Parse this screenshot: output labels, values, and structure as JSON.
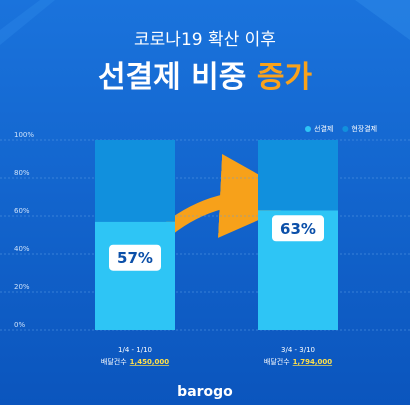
{
  "chart_data": {
    "type": "stacked_bar",
    "subtitle": "코로나19 확산 이후",
    "title": "선결제 비중",
    "title_highlight": "증가",
    "categories": [
      "1/4 - 1/10",
      "3/4 - 3/10"
    ],
    "count_caption": "배달건수",
    "delivery_counts": [
      "1,450,000",
      "1,794,000"
    ],
    "series": [
      {
        "name": "선결제",
        "color": "#2ec5f5",
        "values": [
          57,
          63
        ],
        "value_labels": [
          "57%",
          "63%"
        ]
      },
      {
        "name": "현장결제",
        "color": "#1190dd",
        "values": [
          43,
          37
        ]
      }
    ],
    "ylim": [
      0,
      100
    ],
    "yticks": [
      {
        "value": 0,
        "label": "0%"
      },
      {
        "value": 20,
        "label": "20%"
      },
      {
        "value": 40,
        "label": "40%"
      },
      {
        "value": 60,
        "label": "60%"
      },
      {
        "value": 80,
        "label": "80%"
      },
      {
        "value": 100,
        "label": "100%"
      }
    ],
    "grid": true,
    "legend": "top-right",
    "brand": "barogo"
  }
}
